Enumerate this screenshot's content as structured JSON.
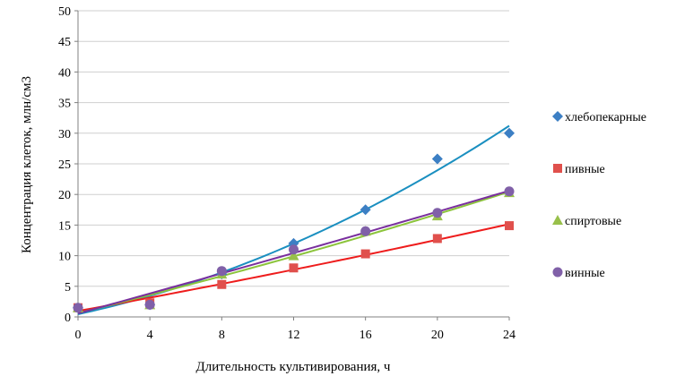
{
  "chart_data": {
    "type": "scatter",
    "title": "",
    "xlabel": "Длительность культивирования, ч",
    "ylabel": "Концентрация клеток, млн/см3",
    "xlim": [
      0,
      24
    ],
    "ylim": [
      0,
      50
    ],
    "x_ticks": [
      0,
      4,
      8,
      12,
      16,
      20,
      24
    ],
    "y_ticks": [
      0,
      5,
      10,
      15,
      20,
      25,
      30,
      35,
      40,
      45,
      50
    ],
    "grid": "horizontal",
    "legend_position": "right",
    "trendlines": true,
    "series": [
      {
        "name": "хлебопекарные",
        "marker": "diamond",
        "color": "#3c7fc4",
        "line_color": "#1a8fc0",
        "x": [
          0,
          4,
          8,
          12,
          16,
          20,
          24
        ],
        "y": [
          1.5,
          2.0,
          7.0,
          12.0,
          17.5,
          25.8,
          30.0
        ]
      },
      {
        "name": "пивные",
        "marker": "square",
        "color": "#e0504c",
        "line_color": "#ee1c1c",
        "x": [
          0,
          4,
          8,
          12,
          16,
          20,
          24
        ],
        "y": [
          1.5,
          2.3,
          5.3,
          8.0,
          10.3,
          12.8,
          14.9
        ]
      },
      {
        "name": "спиртовые",
        "marker": "triangle",
        "color": "#98c04a",
        "line_color": "#8cc43c",
        "x": [
          0,
          4,
          8,
          12,
          16,
          20,
          24
        ],
        "y": [
          1.5,
          2.0,
          7.0,
          10.0,
          14.0,
          16.5,
          20.3
        ]
      },
      {
        "name": "винные",
        "marker": "circle",
        "color": "#8060a8",
        "line_color": "#7a2f9e",
        "x": [
          0,
          4,
          8,
          12,
          16,
          20,
          24
        ],
        "y": [
          1.5,
          2.0,
          7.5,
          11.0,
          14.0,
          17.0,
          20.5
        ]
      }
    ]
  }
}
